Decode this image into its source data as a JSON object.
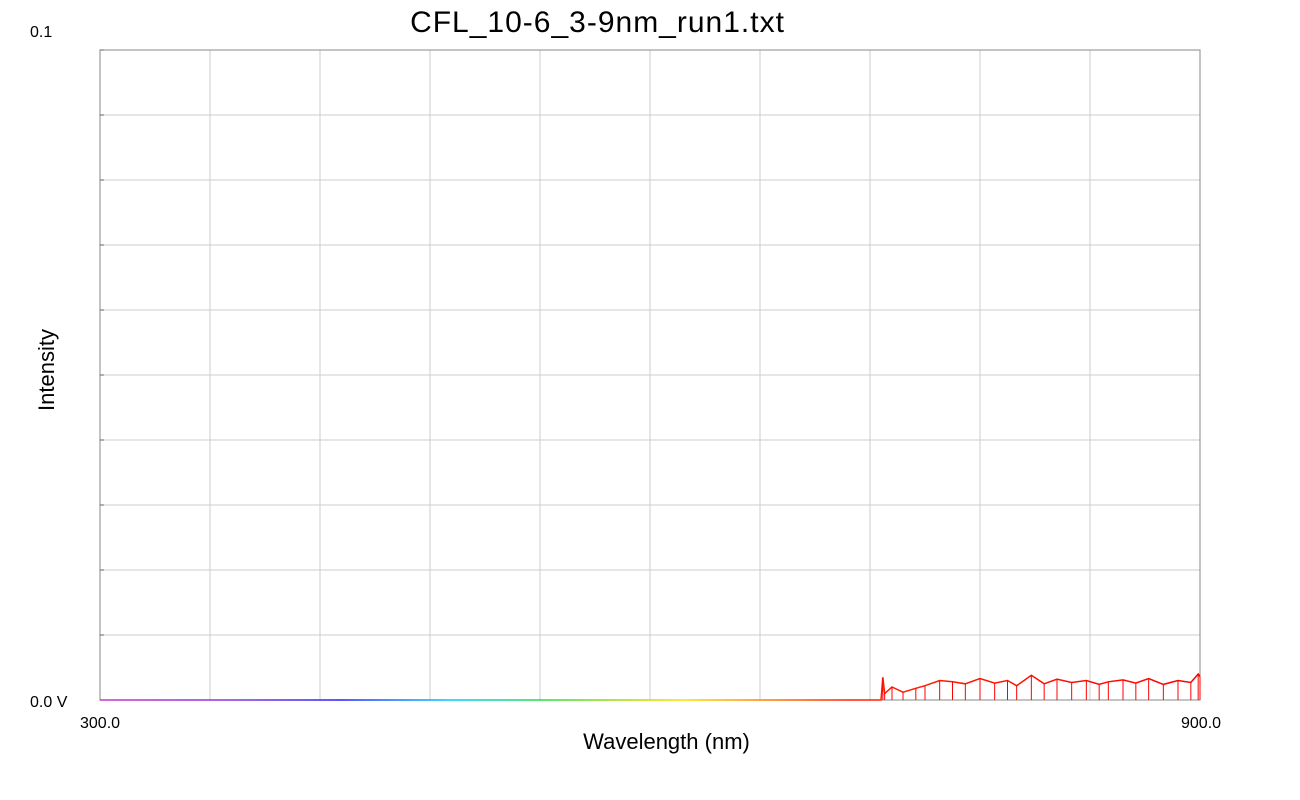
{
  "chart_data": {
    "type": "line",
    "title": "CFL_10-6_3-9nm_run1.txt",
    "xlabel": "Wavelength (nm)",
    "ylabel": "Intensity",
    "xlim": [
      300.0,
      900.0
    ],
    "ylim": [
      0.0,
      0.1
    ],
    "x_tick_labels": [
      "300.0",
      "900.0"
    ],
    "y_tick_labels": {
      "top": "0.1",
      "bottom": "0.0 V"
    },
    "grid": true,
    "grid_x_divisions": 10,
    "grid_y_divisions": 10,
    "line_coloring": "wavelength spectrum (violet to red)",
    "series": [
      {
        "values_description": "near-zero baseline with noise spikes above ~727 nm",
        "x": [
          300,
          350,
          400,
          450,
          500,
          550,
          600,
          650,
          700,
          726,
          727,
          728,
          732,
          738,
          745,
          750,
          758,
          765,
          772,
          780,
          788,
          795,
          800,
          808,
          815,
          822,
          830,
          838,
          845,
          850,
          858,
          865,
          872,
          880,
          888,
          895,
          899,
          900
        ],
        "y": [
          0,
          0,
          0,
          0,
          0,
          0,
          0,
          0,
          0,
          0,
          0.0035,
          0.001,
          0.002,
          0.0012,
          0.0018,
          0.0022,
          0.003,
          0.0028,
          0.0025,
          0.0033,
          0.0026,
          0.003,
          0.0022,
          0.0038,
          0.0025,
          0.0032,
          0.0027,
          0.003,
          0.0024,
          0.0028,
          0.0031,
          0.0026,
          0.0033,
          0.0024,
          0.003,
          0.0027,
          0.004,
          0.0036
        ]
      }
    ]
  }
}
